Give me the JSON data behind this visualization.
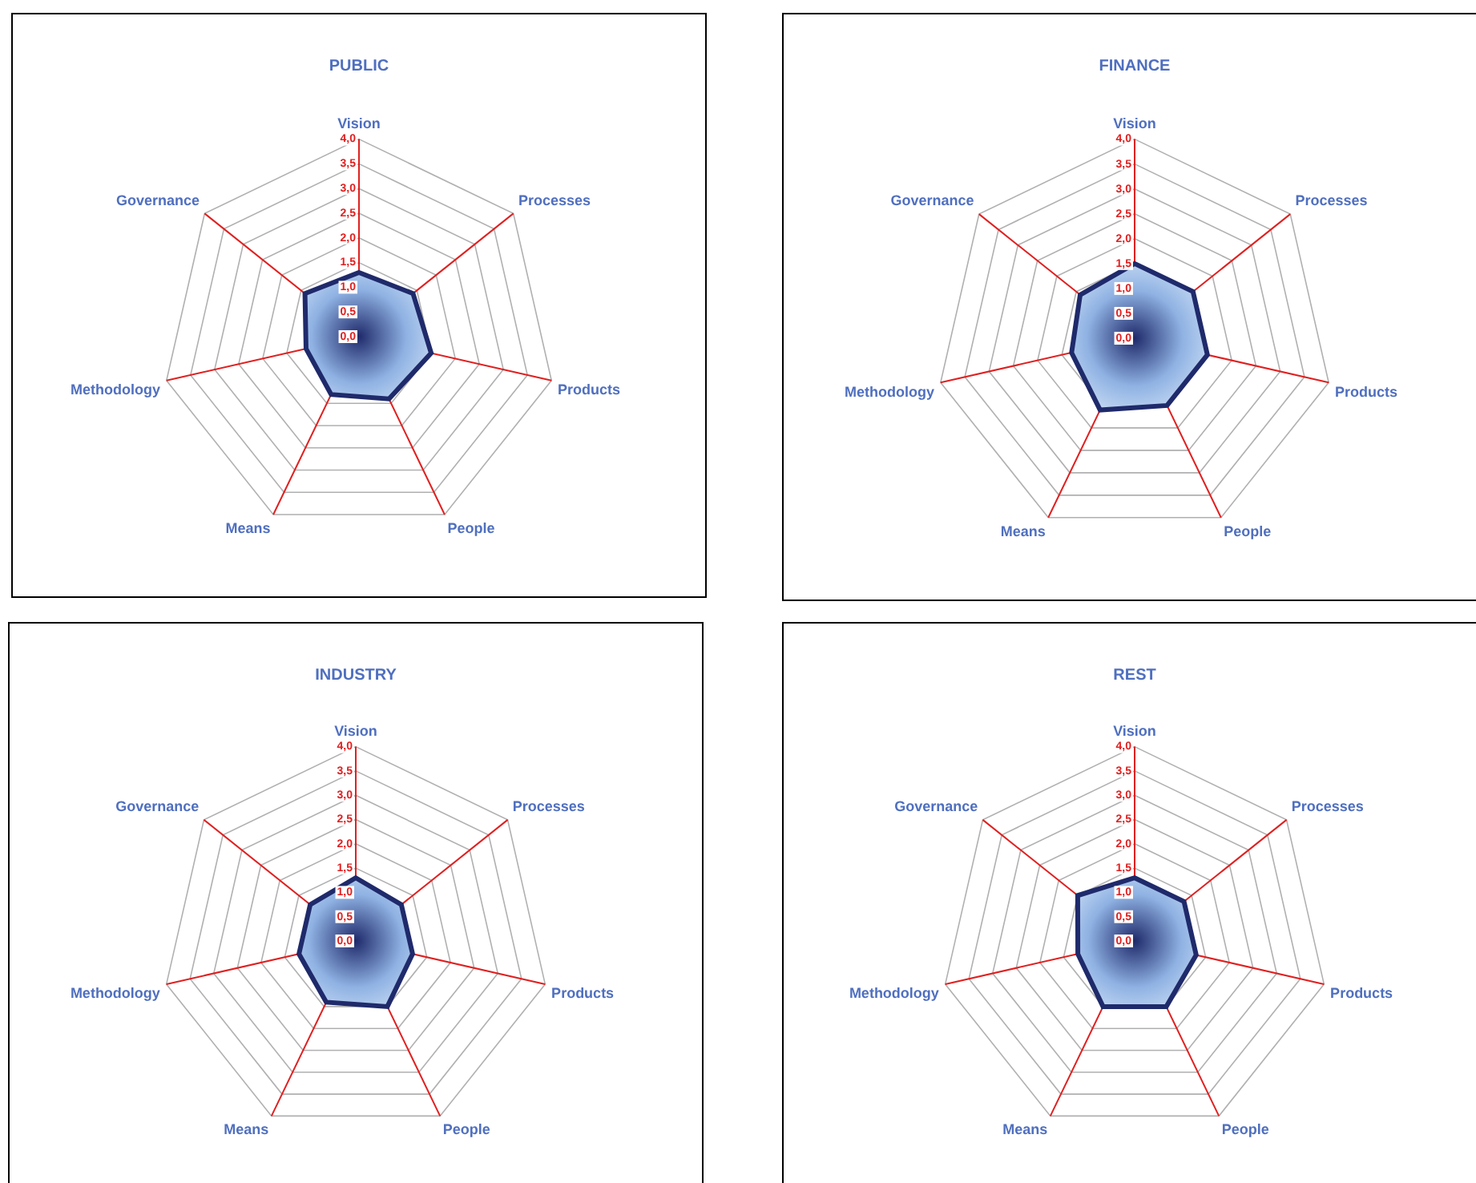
{
  "chart_data": [
    {
      "type": "radar",
      "title": "PUBLIC",
      "categories": [
        "Vision",
        "Processes",
        "Products",
        "People",
        "Means",
        "Methodology",
        "Governance"
      ],
      "series": [
        {
          "color": "#1f2a6b",
          "values": [
            1.3,
            1.4,
            1.5,
            1.4,
            1.3,
            1.1,
            1.4
          ]
        }
      ],
      "ylim": [
        0,
        4
      ],
      "yticks": [
        {
          "value": 0,
          "label": "0,0"
        },
        {
          "value": 0.5,
          "label": "0,5"
        },
        {
          "value": 1,
          "label": "1,0"
        },
        {
          "value": 1.5,
          "label": "1,5"
        },
        {
          "value": 2,
          "label": "2,0"
        },
        {
          "value": 2.5,
          "label": "2,5"
        },
        {
          "value": 3,
          "label": "3,0"
        },
        {
          "value": 3.5,
          "label": "3,5"
        },
        {
          "value": 4,
          "label": "4,0"
        }
      ],
      "grid": true,
      "legend": false
    },
    {
      "type": "radar",
      "title": "FINANCE",
      "categories": [
        "Vision",
        "Processes",
        "Products",
        "People",
        "Means",
        "Methodology",
        "Governance"
      ],
      "series": [
        {
          "color": "#1f2a6b",
          "values": [
            1.5,
            1.5,
            1.5,
            1.5,
            1.6,
            1.3,
            1.4
          ]
        }
      ],
      "ylim": [
        0,
        4
      ],
      "yticks": [
        {
          "value": 0,
          "label": "0,0"
        },
        {
          "value": 0.5,
          "label": "0,5"
        },
        {
          "value": 1,
          "label": "1,0"
        },
        {
          "value": 1.5,
          "label": "1,5"
        },
        {
          "value": 2,
          "label": "2,0"
        },
        {
          "value": 2.5,
          "label": "2,5"
        },
        {
          "value": 3,
          "label": "3,0"
        },
        {
          "value": 3.5,
          "label": "3,5"
        },
        {
          "value": 4,
          "label": "4,0"
        }
      ],
      "grid": true,
      "legend": false
    },
    {
      "type": "radar",
      "title": "INDUSTRY",
      "categories": [
        "Vision",
        "Processes",
        "Products",
        "People",
        "Means",
        "Methodology",
        "Governance"
      ],
      "series": [
        {
          "color": "#1f2a6b",
          "values": [
            1.3,
            1.2,
            1.2,
            1.5,
            1.4,
            1.2,
            1.2
          ]
        }
      ],
      "ylim": [
        0,
        4
      ],
      "yticks": [
        {
          "value": 0,
          "label": "0,0"
        },
        {
          "value": 0.5,
          "label": "0,5"
        },
        {
          "value": 1,
          "label": "1,0"
        },
        {
          "value": 1.5,
          "label": "1,5"
        },
        {
          "value": 2,
          "label": "2,0"
        },
        {
          "value": 2.5,
          "label": "2,5"
        },
        {
          "value": 3,
          "label": "3,0"
        },
        {
          "value": 3.5,
          "label": "3,5"
        },
        {
          "value": 4,
          "label": "4,0"
        }
      ],
      "grid": true,
      "legend": false
    },
    {
      "type": "radar",
      "title": "REST",
      "categories": [
        "Vision",
        "Processes",
        "Products",
        "People",
        "Means",
        "Methodology",
        "Governance"
      ],
      "series": [
        {
          "color": "#1f2a6b",
          "values": [
            1.3,
            1.3,
            1.3,
            1.5,
            1.5,
            1.2,
            1.5
          ]
        }
      ],
      "ylim": [
        0,
        4
      ],
      "yticks": [
        {
          "value": 0,
          "label": "0,0"
        },
        {
          "value": 0.5,
          "label": "0,5"
        },
        {
          "value": 1,
          "label": "1,0"
        },
        {
          "value": 1.5,
          "label": "1,5"
        },
        {
          "value": 2,
          "label": "2,0"
        },
        {
          "value": 2.5,
          "label": "2,5"
        },
        {
          "value": 3,
          "label": "3,0"
        },
        {
          "value": 3.5,
          "label": "3,5"
        },
        {
          "value": 4,
          "label": "4,0"
        }
      ],
      "grid": true,
      "legend": false
    }
  ]
}
